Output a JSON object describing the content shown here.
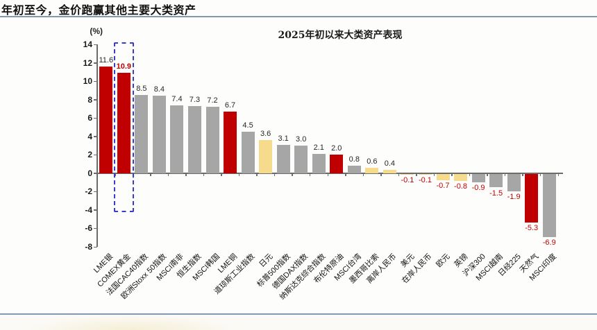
{
  "page": {
    "header_title": "年初至今，金价跑赢其他主要大类资产"
  },
  "colors": {
    "commodity_red": "#c00000",
    "equity_gray": "#a6a6a6",
    "currency_yellow": "#f7db8d",
    "negative_label_red": "#c00000",
    "emphasis_label_red": "#c00000",
    "highlight_box_blue": "#3b3bcb",
    "divider_steel_blue": "#8099b3",
    "axis_gray": "#6b6b6b"
  },
  "chart_data": {
    "type": "bar",
    "title": "2025年初以来大类资产表现",
    "unit_label": "(%)",
    "xlabel": "",
    "ylabel": "(%)",
    "ylim": [
      -8,
      14
    ],
    "yticks": [
      14,
      12,
      10,
      8,
      6,
      4,
      2,
      0,
      -2,
      -4,
      -6,
      -8
    ],
    "grid": false,
    "legend": "none",
    "highlight_index": 1,
    "categories": [
      "LME银",
      "COMEX黄金",
      "法国CAC40指数",
      "欧洲Stoxx 50指数",
      "MSCI南非",
      "恒生指数",
      "MSCI韩国",
      "LME铜",
      "道琼斯工业指数",
      "日元",
      "标普500指数",
      "德国DAX指数",
      "纳斯达克综合指数",
      "布伦特原油",
      "MSCI台湾",
      "墨西哥比索",
      "离岸人民币",
      "美元",
      "在岸人民币",
      "欧元",
      "英镑",
      "沪深300",
      "MSCI越南",
      "日经225",
      "天然气",
      "MSCI印度"
    ],
    "values": [
      11.6,
      10.9,
      8.5,
      8.4,
      7.4,
      7.3,
      7.2,
      6.7,
      4.5,
      3.6,
      3.1,
      3.0,
      2.1,
      2.0,
      0.8,
      0.6,
      0.4,
      -0.1,
      -0.1,
      -0.7,
      -0.8,
      -0.9,
      -1.5,
      -1.9,
      -5.3,
      -6.9
    ],
    "bar_types": [
      "commodity",
      "commodity",
      "equity",
      "equity",
      "equity",
      "equity",
      "equity",
      "commodity",
      "equity",
      "currency",
      "equity",
      "equity",
      "equity",
      "commodity",
      "equity",
      "currency",
      "currency",
      "currency",
      "currency",
      "currency",
      "currency",
      "equity",
      "equity",
      "equity",
      "commodity",
      "equity"
    ]
  }
}
